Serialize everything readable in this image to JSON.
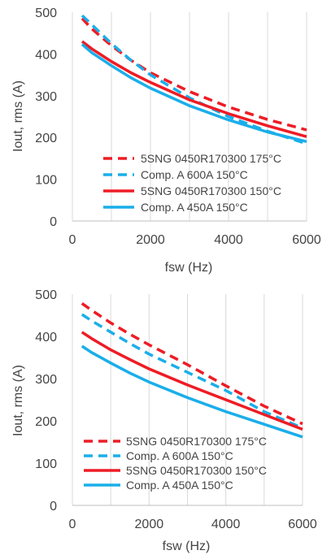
{
  "chart_data": [
    {
      "type": "line",
      "xlabel": "fsw (Hz)",
      "ylabel": "Iout, rms (A)",
      "xlim": [
        0,
        6000
      ],
      "ylim": [
        0,
        500
      ],
      "xticks": [
        "0",
        "2000",
        "4000",
        "6000"
      ],
      "yticks": [
        "0",
        "100",
        "200",
        "300",
        "400",
        "500"
      ],
      "legend_position": "bottom-right",
      "series": [
        {
          "name": "5SNG 0450R170300 175°C",
          "color": "#ee1c25",
          "dashed": true,
          "x": [
            250,
            500,
            1000,
            1500,
            2000,
            3000,
            4000,
            5000,
            6000
          ],
          "y": [
            485,
            460,
            420,
            385,
            355,
            310,
            273,
            243,
            218
          ]
        },
        {
          "name": "Comp. A 600A 150°C",
          "color": "#1aaeea",
          "dashed": true,
          "x": [
            250,
            500,
            1000,
            1500,
            2000,
            3000,
            4000,
            5000,
            6000
          ],
          "y": [
            492,
            470,
            425,
            385,
            350,
            295,
            250,
            215,
            185
          ]
        },
        {
          "name": "5SNG 0450R170300 150°C",
          "color": "#ee1c25",
          "dashed": false,
          "x": [
            250,
            500,
            1000,
            1500,
            2000,
            3000,
            4000,
            5000,
            6000
          ],
          "y": [
            430,
            412,
            382,
            355,
            332,
            290,
            257,
            228,
            202
          ]
        },
        {
          "name": "Comp. A 450A 150°C",
          "color": "#1aaeea",
          "dashed": false,
          "x": [
            250,
            500,
            1000,
            1500,
            2000,
            3000,
            4000,
            5000,
            6000
          ],
          "y": [
            423,
            403,
            372,
            343,
            318,
            276,
            242,
            213,
            190
          ]
        }
      ]
    },
    {
      "type": "line",
      "xlabel": "fsw (Hz)",
      "ylabel": "Iout, rms (A)",
      "xlim": [
        0,
        6000
      ],
      "ylim": [
        0,
        500
      ],
      "xticks": [
        "0",
        "2000",
        "4000",
        "6000"
      ],
      "yticks": [
        "0",
        "100",
        "200",
        "300",
        "400",
        "500"
      ],
      "legend_position": "bottom-right",
      "series": [
        {
          "name": "5SNG 0450R170300 175°C",
          "color": "#ee1c25",
          "dashed": true,
          "x": [
            250,
            500,
            1000,
            1500,
            2000,
            3000,
            4000,
            5000,
            6000
          ],
          "y": [
            478,
            462,
            432,
            405,
            380,
            333,
            283,
            235,
            193
          ]
        },
        {
          "name": "Comp. A 600A 150°C",
          "color": "#1aaeea",
          "dashed": true,
          "x": [
            250,
            500,
            1000,
            1500,
            2000,
            3000,
            4000,
            5000,
            6000
          ],
          "y": [
            452,
            437,
            410,
            383,
            358,
            315,
            272,
            222,
            183
          ]
        },
        {
          "name": "5SNG 0450R170300 150°C",
          "color": "#ee1c25",
          "dashed": false,
          "x": [
            250,
            500,
            1000,
            1500,
            2000,
            3000,
            4000,
            5000,
            6000
          ],
          "y": [
            410,
            395,
            368,
            345,
            323,
            285,
            250,
            215,
            180
          ]
        },
        {
          "name": "Comp. A 450A 150°C",
          "color": "#1aaeea",
          "dashed": false,
          "x": [
            250,
            500,
            1000,
            1500,
            2000,
            3000,
            4000,
            5000,
            6000
          ],
          "y": [
            377,
            362,
            337,
            313,
            292,
            255,
            222,
            192,
            162
          ]
        }
      ]
    }
  ]
}
